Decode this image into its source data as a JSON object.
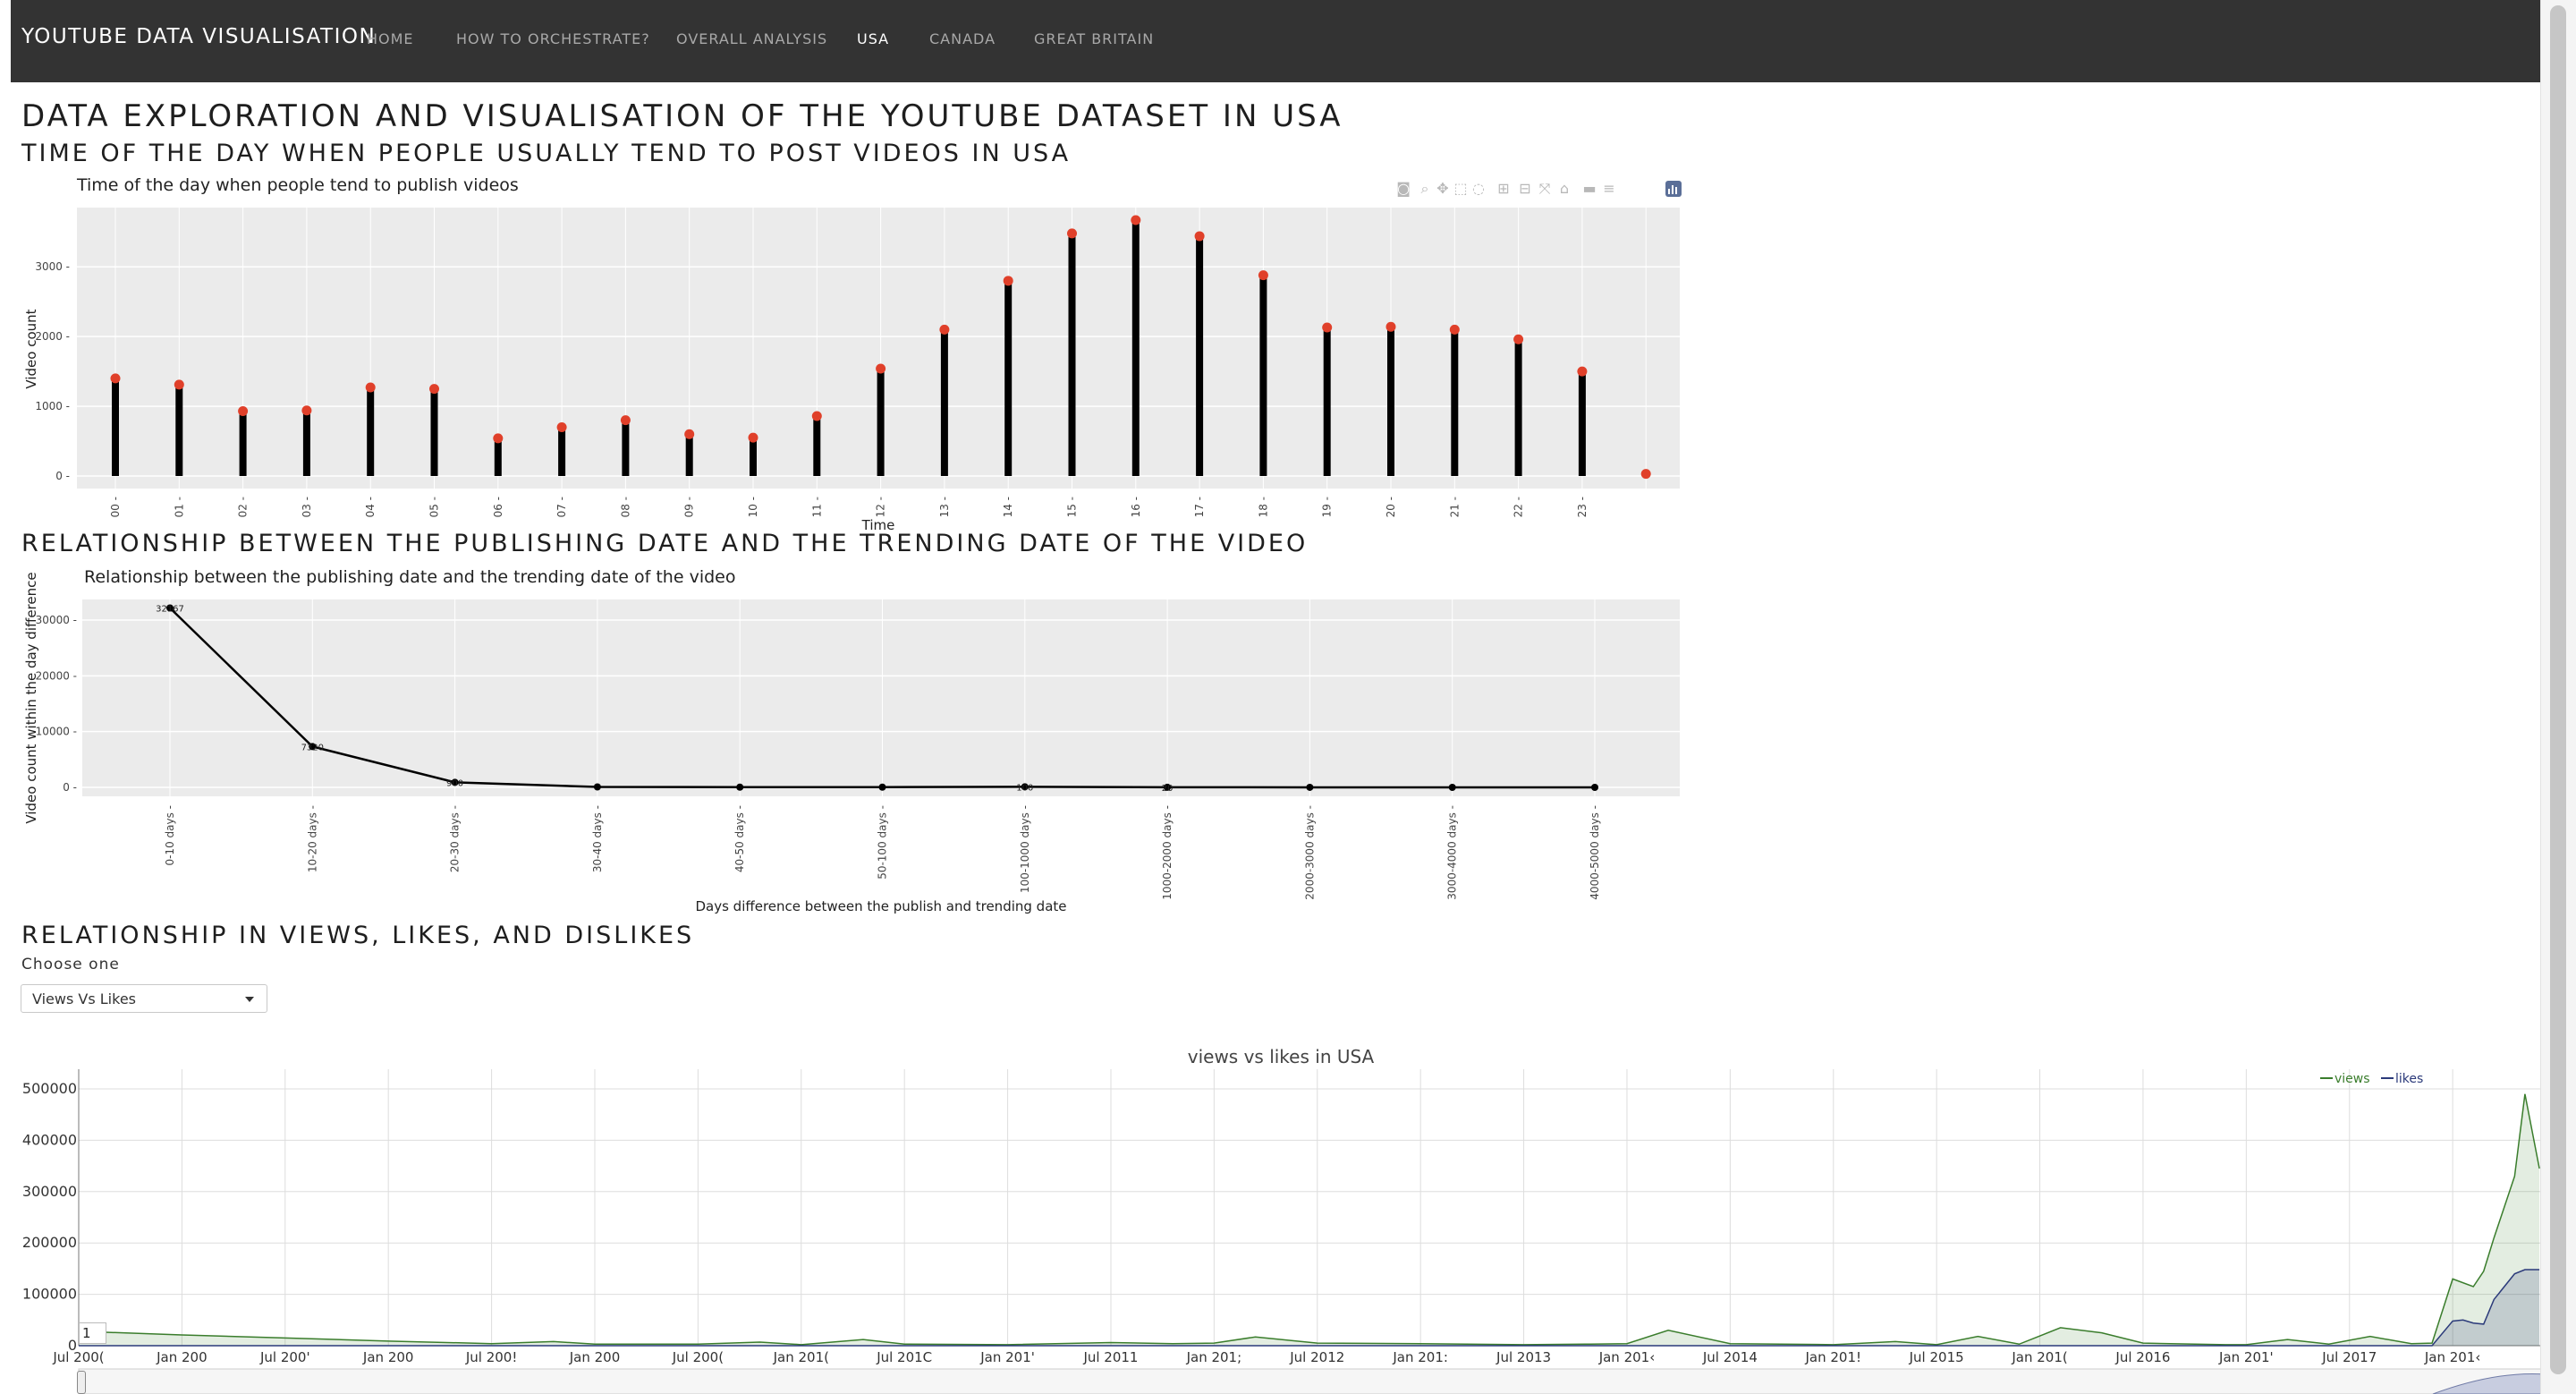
{
  "navbar": {
    "brand": "YOUTUBE DATA VISUALISATION",
    "items": [
      {
        "label": "HOME",
        "active": false
      },
      {
        "label": "HOW TO ORCHESTRATE?",
        "active": false
      },
      {
        "label": "OVERALL ANALYSIS",
        "active": false
      },
      {
        "label": "USA",
        "active": true
      },
      {
        "label": "CANADA",
        "active": false
      },
      {
        "label": "GREAT BRITAIN",
        "active": false
      }
    ]
  },
  "page": {
    "title": "DATA EXPLORATION AND VISUALISATION OF THE YOUTUBE DATASET IN USA",
    "section1_title": "TIME OF THE DAY WHEN PEOPLE USUALLY TEND TO POST VIDEOS IN USA",
    "section2_title": "RELATIONSHIP BETWEEN THE PUBLISHING DATE AND THE TRENDING DATE OF THE VIDEO",
    "section3_title": "RELATIONSHIP IN VIEWS, LIKES, AND DISLIKES"
  },
  "controls": {
    "choose_label": "Choose one",
    "dropdown_value": "Views Vs Likes",
    "range_input_value": "1"
  },
  "colors": {
    "navbar_bg": "#333333",
    "plot_bg": "#ebebeb",
    "point_red": "#e0402a",
    "views_green": "#3a7d2c",
    "likes_navy": "#2b3a7a"
  },
  "modebar_icons": [
    "camera-icon",
    "zoom-icon",
    "pan-icon",
    "box-select-icon",
    "lasso-icon",
    "zoom-in-icon",
    "zoom-out-icon",
    "autoscale-icon",
    "reset-icon",
    "spike-icon",
    "hover-closest-icon",
    "hover-compare-icon",
    "plotly-logo-icon"
  ],
  "chart_data": [
    {
      "type": "bar",
      "title": "Time of the day when people tend to publish videos",
      "xlabel": "Time",
      "ylabel": "Video count",
      "categories": [
        "00",
        "01",
        "02",
        "03",
        "04",
        "05",
        "06",
        "07",
        "08",
        "09",
        "10",
        "11",
        "12",
        "13",
        "14",
        "15",
        "16",
        "17",
        "18",
        "19",
        "20",
        "21",
        "22",
        "23",
        ""
      ],
      "values": [
        1400,
        1310,
        930,
        940,
        1270,
        1250,
        540,
        700,
        800,
        600,
        550,
        860,
        1540,
        2100,
        2800,
        3480,
        3670,
        3440,
        2880,
        2130,
        2140,
        2100,
        1960,
        1500,
        30
      ],
      "ylim": [
        0,
        3850
      ],
      "yticks": [
        0,
        1000,
        2000,
        3000
      ],
      "grid": true,
      "legend": "none"
    },
    {
      "type": "line",
      "title": "Relationship between the publishing date and the trending date of the video",
      "xlabel": "Days difference between the publish and trending date",
      "ylabel": "Video count within the day difference",
      "categories": [
        "0-10 days",
        "10-20 days",
        "20-30 days",
        "30-40 days",
        "40-50 days",
        "50-100 days",
        "100-1000 days",
        "1000-2000 days",
        "2000-3000 days",
        "3000-4000 days",
        "4000-5000 days"
      ],
      "values": [
        32167,
        7320,
        900,
        80,
        40,
        40,
        100,
        20,
        10,
        2,
        1
      ],
      "labels": [
        "32167",
        "7320",
        "900",
        "",
        "",
        "",
        "100",
        "20",
        "",
        "",
        ""
      ],
      "ylim": [
        -2000,
        34000
      ],
      "yticks": [
        0,
        10000,
        20000,
        30000
      ],
      "grid": true,
      "legend": "none"
    },
    {
      "type": "area",
      "title": "views vs likes in USA",
      "x_ticks": [
        "Jul 2006",
        "Jan 2007",
        "Jul 2007",
        "Jan 2008",
        "Jul 2008",
        "Jan 2009",
        "Jul 2009",
        "Jan 2010",
        "Jul 2010",
        "Jan 2011",
        "Jul 2011",
        "Jan 2012",
        "Jul 2012",
        "Jan 2013",
        "Jul 2013",
        "Jan 2014",
        "Jul 2014",
        "Jan 2015",
        "Jul 2015",
        "Jan 2016",
        "Jul 2016",
        "Jan 2017",
        "Jul 2017",
        "Jan 2018"
      ],
      "x_tick_display": [
        "Jul 200(",
        "Jan 200",
        "Jul 200'",
        "Jan 200",
        "Jul 200!",
        "Jan 200",
        "Jul 200(",
        "Jan 201(",
        "Jul 201C",
        "Jan 201'",
        "Jul 2011",
        "Jan 201;",
        "Jul 2012",
        "Jan 201:",
        "Jul 2013",
        "Jan 201‹",
        "Jul 2014",
        "Jan 201!",
        "Jul 2015",
        "Jan 201(",
        "Jul 2016",
        "Jan 201'",
        "Jul 2017",
        "Jan 201‹"
      ],
      "x_range": [
        2006.5,
        2018.45
      ],
      "ylim": [
        0,
        520000
      ],
      "yticks": [
        0,
        100000,
        200000,
        300000,
        400000,
        500000
      ],
      "legend": "top-right",
      "grid": true,
      "series": [
        {
          "name": "views",
          "color": "#3a7d2c",
          "x": [
            2006.5,
            2007.0,
            2007.5,
            2008.0,
            2008.5,
            2008.8,
            2009.0,
            2009.5,
            2009.8,
            2010.0,
            2010.3,
            2010.5,
            2011.0,
            2011.5,
            2011.8,
            2012.0,
            2012.2,
            2012.5,
            2013.0,
            2013.5,
            2013.8,
            2014.0,
            2014.2,
            2014.5,
            2015.0,
            2015.3,
            2015.5,
            2015.7,
            2015.9,
            2016.1,
            2016.3,
            2016.5,
            2016.9,
            2017.0,
            2017.2,
            2017.4,
            2017.6,
            2017.8,
            2017.9,
            2018.0,
            2018.1,
            2018.15,
            2018.2,
            2018.3,
            2018.35,
            2018.42
          ],
          "y": [
            28000,
            21000,
            15000,
            9000,
            4000,
            8000,
            3000,
            3000,
            7000,
            2000,
            12000,
            3000,
            2000,
            6000,
            4000,
            5000,
            17000,
            5000,
            4000,
            2000,
            3000,
            4000,
            30000,
            4000,
            2000,
            8000,
            2000,
            18000,
            3000,
            35000,
            25000,
            5000,
            2000,
            2000,
            12000,
            3000,
            18000,
            4000,
            5000,
            130000,
            115000,
            145000,
            210000,
            330000,
            490000,
            345000
          ]
        },
        {
          "name": "likes",
          "color": "#2b3a7a",
          "x": [
            2006.5,
            2007.5,
            2008.5,
            2009.5,
            2010.5,
            2011.5,
            2012.5,
            2013.5,
            2014.5,
            2015.5,
            2016.5,
            2017.5,
            2017.9,
            2018.0,
            2018.05,
            2018.1,
            2018.15,
            2018.2,
            2018.3,
            2018.35,
            2018.42
          ],
          "y": [
            0,
            0,
            0,
            0,
            0,
            0,
            0,
            0,
            0,
            0,
            0,
            0,
            0,
            48000,
            50000,
            44000,
            42000,
            90000,
            140000,
            148000,
            148000
          ]
        }
      ]
    }
  ]
}
